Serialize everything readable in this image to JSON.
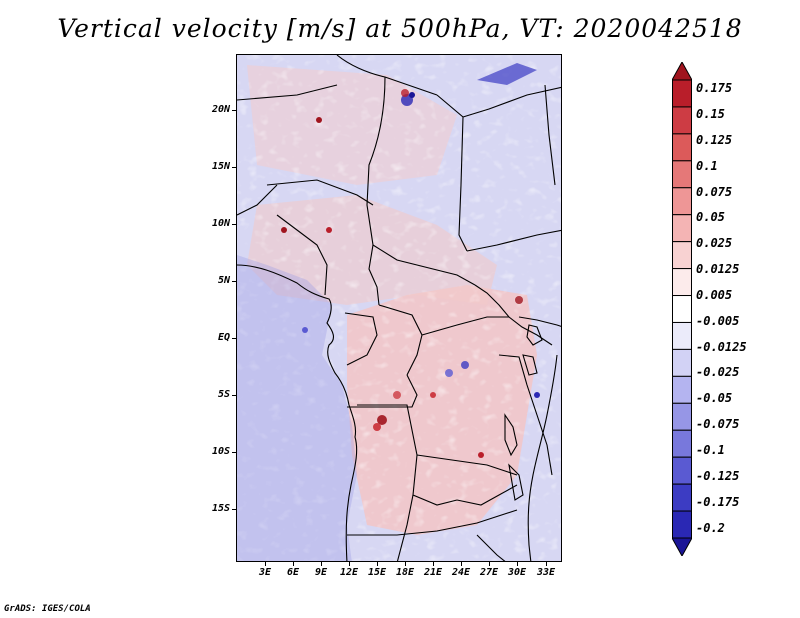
{
  "title": "Vertical velocity [m/s] at 500hPa, VT: 2020042518",
  "credit": "GrADS: IGES/COLA",
  "map": {
    "lat_labels": [
      "20N",
      "15N",
      "10N",
      "5N",
      "EQ",
      "5S",
      "10S",
      "15S"
    ],
    "lon_labels": [
      "3E",
      "6E",
      "9E",
      "12E",
      "15E",
      "18E",
      "21E",
      "24E",
      "27E",
      "30E",
      "33E"
    ]
  },
  "colorbar": {
    "labels": [
      "0.175",
      "0.15",
      "0.125",
      "0.1",
      "0.075",
      "0.05",
      "0.025",
      "0.0125",
      "0.005",
      "-0.005",
      "-0.0125",
      "-0.025",
      "-0.05",
      "-0.075",
      "-0.1",
      "-0.125",
      "-0.175",
      "-0.2"
    ],
    "colors": [
      "#a0141e",
      "#b91e2a",
      "#cd3c44",
      "#dc5a5a",
      "#e57878",
      "#ee9696",
      "#f4b4b4",
      "#f8d2d2",
      "#fcebeb",
      "#ffffff",
      "#ebebfa",
      "#d2d2f5",
      "#b4b4f0",
      "#9696e6",
      "#7878dc",
      "#5a5ad2",
      "#3c3cc3",
      "#2a28b4",
      "#1a1496"
    ]
  }
}
